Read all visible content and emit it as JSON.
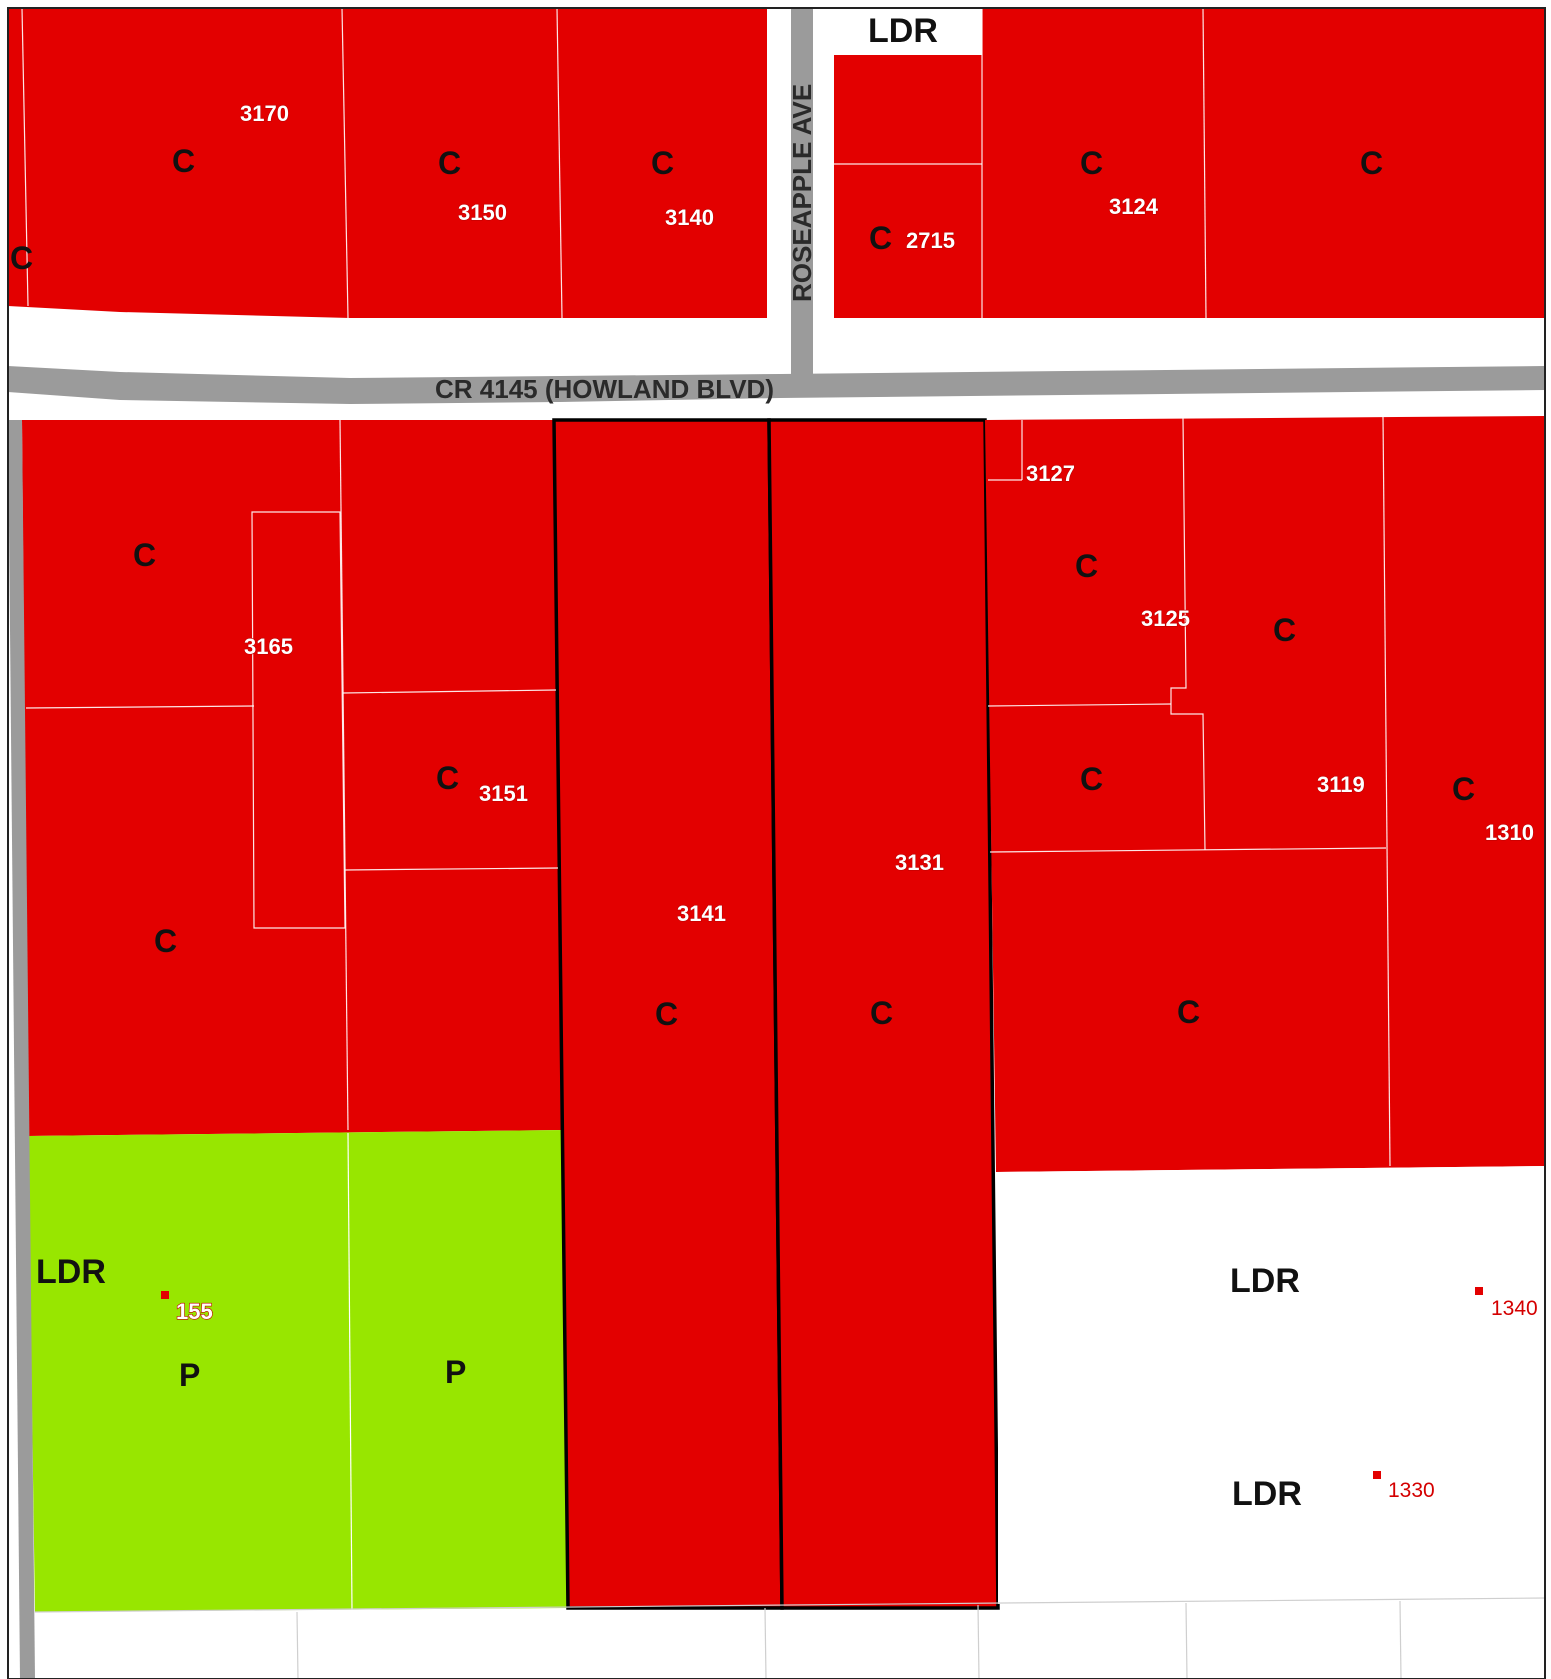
{
  "colors": {
    "commercial": "#e30000",
    "public": "#98e600",
    "residential": "#ffffff",
    "road": "#9b9b9b",
    "address_point": "#e30000"
  },
  "roads": {
    "main": "CR 4145 (HOWLAND BLVD)",
    "side": "ROSEAPPLE AVE"
  },
  "zones": {
    "c": "C",
    "ldr": "LDR",
    "p": "P"
  },
  "addresses": {
    "a3170": "3170",
    "a3150": "3150",
    "a3140": "3140",
    "a2715": "2715",
    "a3124": "3124",
    "a3127": "3127",
    "a3165": "3165",
    "a3125": "3125",
    "a3151": "3151",
    "a3119": "3119",
    "a1310": "1310",
    "a3131": "3131",
    "a3141": "3141",
    "a155": "155",
    "a1340": "1340",
    "a1330": "1330"
  }
}
